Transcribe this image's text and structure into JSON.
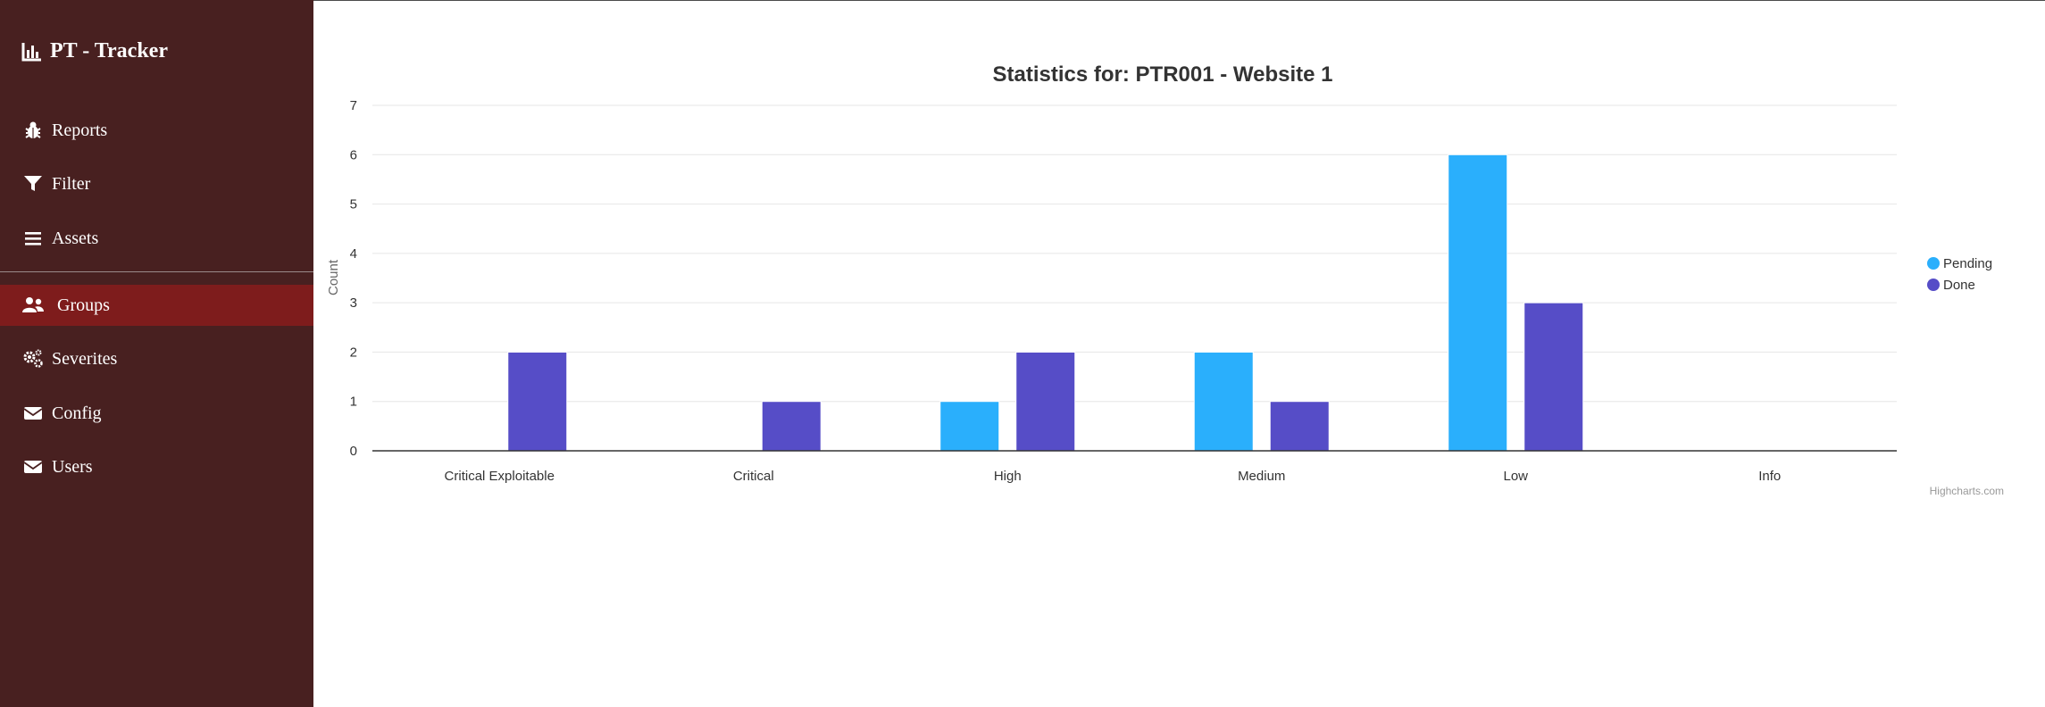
{
  "app": {
    "brand": "PT - Tracker"
  },
  "sidebar": {
    "items": [
      {
        "label": "Reports",
        "icon": "bug-icon"
      },
      {
        "label": "Filter",
        "icon": "filter-icon"
      },
      {
        "label": "Assets",
        "icon": "list-icon"
      },
      {
        "label": "Groups",
        "icon": "users-icon",
        "active": true
      },
      {
        "label": "Severites",
        "icon": "cogs-icon"
      },
      {
        "label": "Config",
        "icon": "envelope-icon"
      },
      {
        "label": "Users",
        "icon": "envelope-icon"
      }
    ]
  },
  "colors": {
    "sidebar_bg": "#482020",
    "active_bg": "#7e1c1c",
    "pending": "#2aaffc",
    "done": "#564dc7"
  },
  "chart_data": {
    "type": "bar",
    "title": "Statistics for: PTR001 - Website 1",
    "ylabel": "Count",
    "xlabel": "",
    "categories": [
      "Critical Exploitable",
      "Critical",
      "High",
      "Medium",
      "Low",
      "Info"
    ],
    "series": [
      {
        "name": "Pending",
        "color": "#2aaffc",
        "values": [
          0,
          0,
          1,
          2,
          6,
          0
        ]
      },
      {
        "name": "Done",
        "color": "#564dc7",
        "values": [
          2,
          1,
          2,
          1,
          3,
          0
        ]
      }
    ],
    "ylim": [
      0,
      7
    ],
    "yticks": [
      0,
      1,
      2,
      3,
      4,
      5,
      6,
      7
    ],
    "grid": true,
    "legend": "right",
    "credits": "Highcharts.com"
  }
}
